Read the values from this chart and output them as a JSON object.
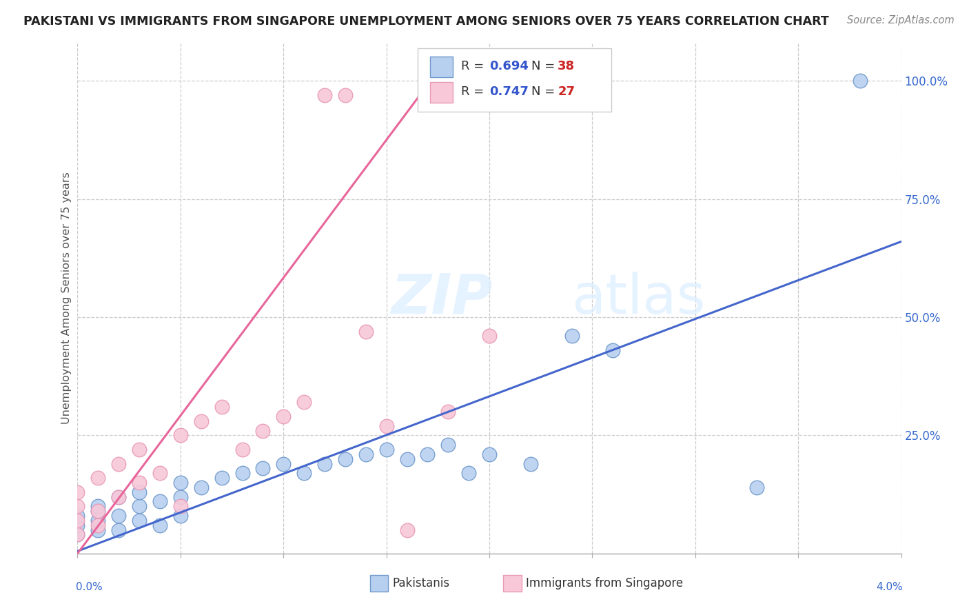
{
  "title": "PAKISTANI VS IMMIGRANTS FROM SINGAPORE UNEMPLOYMENT AMONG SENIORS OVER 75 YEARS CORRELATION CHART",
  "source": "Source: ZipAtlas.com",
  "ylabel": "Unemployment Among Seniors over 75 years",
  "legend_pakistanis_R": "0.694",
  "legend_pakistanis_N": "38",
  "legend_singapore_R": "0.747",
  "legend_singapore_N": "27",
  "watermark_zip": "ZIP",
  "watermark_atlas": "atlas",
  "blue_face": "#b8d0f0",
  "blue_edge": "#7099cc",
  "blue_line": "#4466cc",
  "pink_face": "#f8c8d8",
  "pink_edge": "#e899b8",
  "pink_line": "#e8669a",
  "legend_R_color": "#3355cc",
  "legend_N_color": "#cc2222",
  "xlim": [
    0.0,
    0.04
  ],
  "ylim": [
    0.0,
    1.08
  ],
  "pak_x": [
    0.0,
    0.0,
    0.0,
    0.001,
    0.001,
    0.001,
    0.001,
    0.002,
    0.002,
    0.002,
    0.003,
    0.003,
    0.003,
    0.004,
    0.004,
    0.005,
    0.005,
    0.005,
    0.006,
    0.007,
    0.008,
    0.009,
    0.01,
    0.011,
    0.012,
    0.013,
    0.014,
    0.015,
    0.016,
    0.017,
    0.018,
    0.019,
    0.02,
    0.022,
    0.024,
    0.026,
    0.033,
    0.038
  ],
  "pak_y": [
    0.04,
    0.06,
    0.08,
    0.05,
    0.07,
    0.09,
    0.1,
    0.05,
    0.08,
    0.12,
    0.07,
    0.1,
    0.13,
    0.06,
    0.11,
    0.08,
    0.12,
    0.15,
    0.14,
    0.16,
    0.17,
    0.18,
    0.19,
    0.17,
    0.19,
    0.2,
    0.21,
    0.22,
    0.2,
    0.21,
    0.23,
    0.17,
    0.21,
    0.19,
    0.46,
    0.43,
    0.14,
    1.0
  ],
  "sing_x": [
    0.0,
    0.0,
    0.0,
    0.0,
    0.001,
    0.001,
    0.001,
    0.002,
    0.002,
    0.003,
    0.003,
    0.004,
    0.005,
    0.005,
    0.006,
    0.007,
    0.008,
    0.009,
    0.01,
    0.011,
    0.012,
    0.013,
    0.014,
    0.015,
    0.016,
    0.018,
    0.02
  ],
  "sing_y": [
    0.04,
    0.07,
    0.1,
    0.13,
    0.06,
    0.09,
    0.16,
    0.12,
    0.19,
    0.15,
    0.22,
    0.17,
    0.1,
    0.25,
    0.28,
    0.31,
    0.22,
    0.26,
    0.29,
    0.32,
    0.97,
    0.97,
    0.47,
    0.27,
    0.05,
    0.3,
    0.46
  ],
  "pak_line_x": [
    0.0,
    0.04
  ],
  "pak_line_y": [
    0.005,
    0.66
  ],
  "sing_line_x": [
    0.0,
    0.018
  ],
  "sing_line_y": [
    0.0,
    1.05
  ],
  "y_ticks": [
    0.0,
    0.25,
    0.5,
    0.75,
    1.0
  ],
  "y_tick_labels_right": [
    "",
    "25.0%",
    "50.0%",
    "75.0%",
    "100.0%"
  ]
}
